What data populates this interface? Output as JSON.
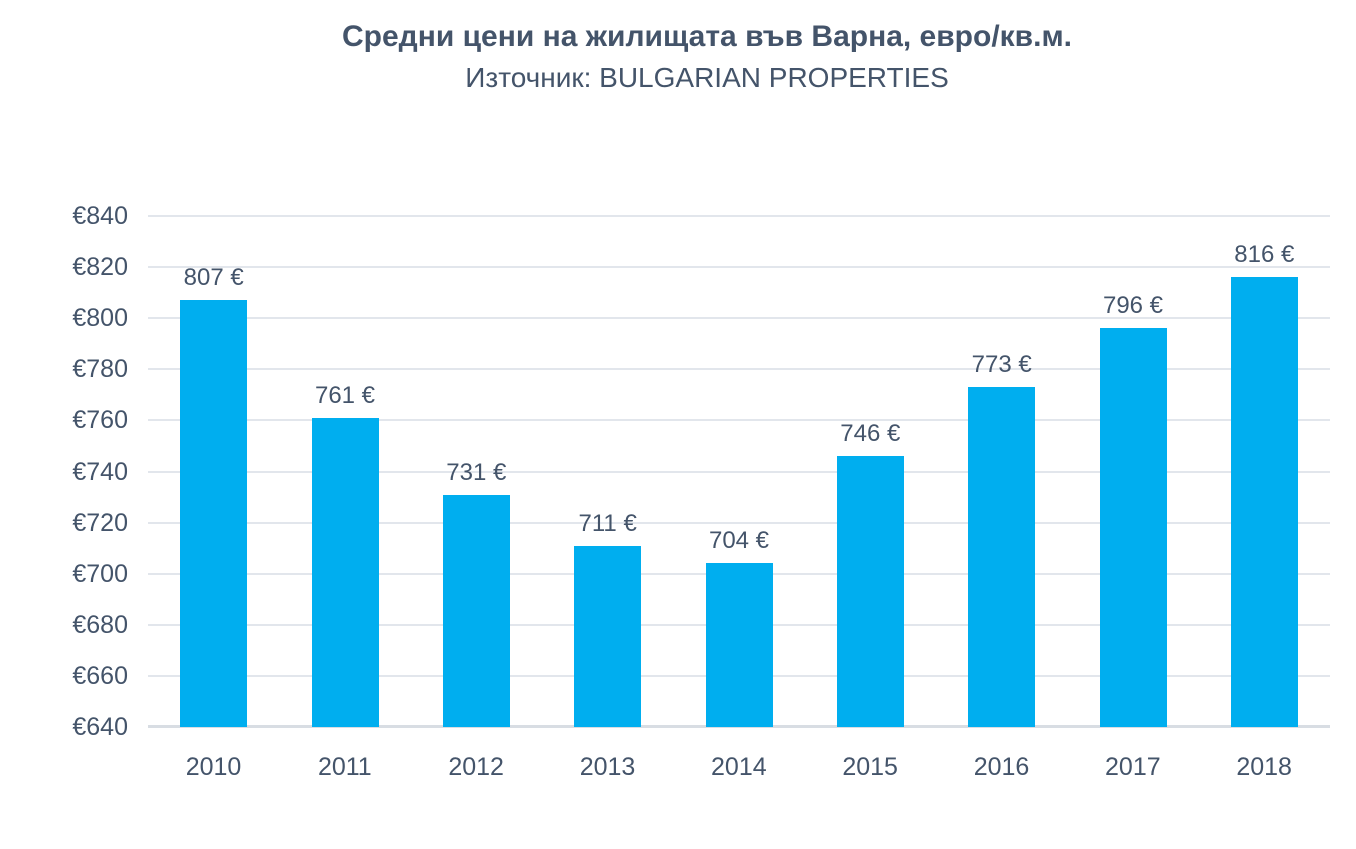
{
  "header": {
    "title": "Средни цени на жилищата във Варна, евро/кв.м.",
    "subtitle": "Източник: BULGARIAN PROPERTIES"
  },
  "chart_data": {
    "type": "bar",
    "title": "Средни цени на жилищата във Варна, евро/кв.м.",
    "subtitle": "Източник: BULGARIAN PROPERTIES",
    "categories": [
      "2010",
      "2011",
      "2012",
      "2013",
      "2014",
      "2015",
      "2016",
      "2017",
      "2018"
    ],
    "values": [
      807,
      761,
      731,
      711,
      704,
      746,
      773,
      796,
      816
    ],
    "value_labels": [
      "807 €",
      "761 €",
      "731 €",
      "711 €",
      "704 €",
      "746 €",
      "773 €",
      "796 €",
      "816 €"
    ],
    "xlabel": "",
    "ylabel": "",
    "ylim": [
      640,
      840
    ],
    "y_tick_step": 20,
    "y_tick_labels": [
      "€640",
      "€660",
      "€680",
      "€700",
      "€720",
      "€740",
      "€760",
      "€780",
      "€800",
      "€820",
      "€840"
    ],
    "grid": true,
    "legend": "none",
    "colors": {
      "bar": "#00AEEF",
      "text": "#44546A",
      "gridline": "#E2E6EC",
      "baseline": "#D8DDE3",
      "background": "#FFFFFF"
    }
  }
}
